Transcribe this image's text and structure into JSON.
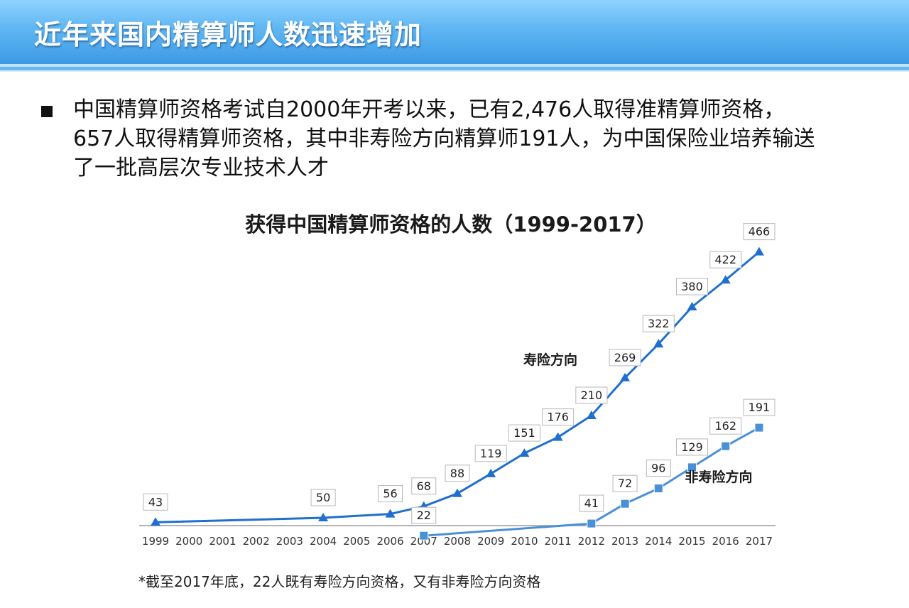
{
  "header": {
    "title": "近年来国内精算师人数迅速增加"
  },
  "intro": {
    "lines": [
      "中国精算师资格考试自2000年开考以来，已有2,476人取得准精算师资格，",
      "657人取得精算师资格，其中非寿险方向精算师191人，为中国保险业培养输送",
      "了一批高层次专业技术人才"
    ]
  },
  "chart_data": {
    "type": "line",
    "title": "获得中国精算师资格的人数（1999-2017）",
    "categories": [
      "1999",
      "2000",
      "2001",
      "2002",
      "2003",
      "2004",
      "2005",
      "2006",
      "2007",
      "2008",
      "2009",
      "2010",
      "2011",
      "2012",
      "2013",
      "2014",
      "2015",
      "2016",
      "2017"
    ],
    "series": [
      {
        "name": "寿险方向",
        "marker": "triangle",
        "color": "#1f6fcf",
        "points": [
          {
            "x": "1999",
            "y": 43
          },
          {
            "x": "2004",
            "y": 50
          },
          {
            "x": "2006",
            "y": 56
          },
          {
            "x": "2007",
            "y": 68
          },
          {
            "x": "2008",
            "y": 88
          },
          {
            "x": "2009",
            "y": 119
          },
          {
            "x": "2010",
            "y": 151
          },
          {
            "x": "2011",
            "y": 176
          },
          {
            "x": "2012",
            "y": 210
          },
          {
            "x": "2013",
            "y": 269
          },
          {
            "x": "2014",
            "y": 322
          },
          {
            "x": "2015",
            "y": 380
          },
          {
            "x": "2016",
            "y": 422
          },
          {
            "x": "2017",
            "y": 466
          }
        ]
      },
      {
        "name": "非寿险方向",
        "marker": "square",
        "color": "#4a90d6",
        "points": [
          {
            "x": "2007",
            "y": 22
          },
          {
            "x": "2012",
            "y": 41
          },
          {
            "x": "2013",
            "y": 72
          },
          {
            "x": "2014",
            "y": 96
          },
          {
            "x": "2015",
            "y": 129
          },
          {
            "x": "2016",
            "y": 162
          },
          {
            "x": "2017",
            "y": 191
          }
        ]
      }
    ],
    "xlabel": "",
    "ylabel": "",
    "grid": false,
    "data_labels": true
  },
  "footnote": "*截至2017年底，22人既有寿险方向资格，又有非寿险方向资格"
}
